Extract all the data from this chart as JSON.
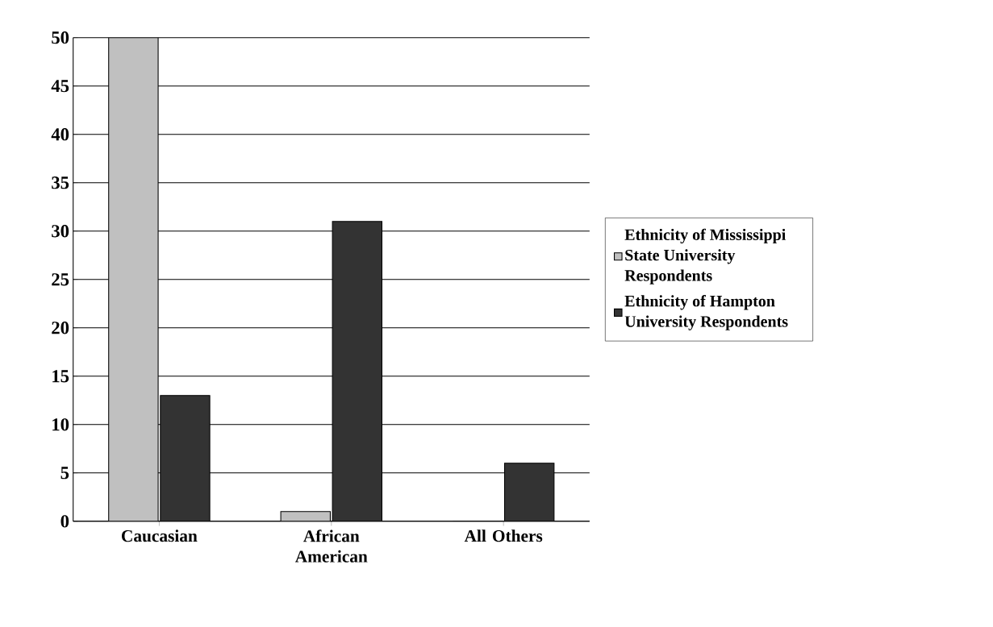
{
  "chart_data": {
    "type": "bar",
    "categories": [
      "Caucasian",
      "African American",
      "All Others"
    ],
    "series": [
      {
        "name": "Ethnicity of Mississippi State University Respondents",
        "color": "#c0c0c0",
        "values": [
          50,
          1,
          0
        ]
      },
      {
        "name": "Ethnicity of Hampton University Respondents",
        "color": "#333333",
        "values": [
          13,
          31,
          6
        ]
      }
    ],
    "ylim": [
      0,
      50
    ],
    "yticks": [
      0,
      5,
      10,
      15,
      20,
      25,
      30,
      35,
      40,
      45,
      50
    ],
    "grid": "y",
    "legend": "right"
  }
}
